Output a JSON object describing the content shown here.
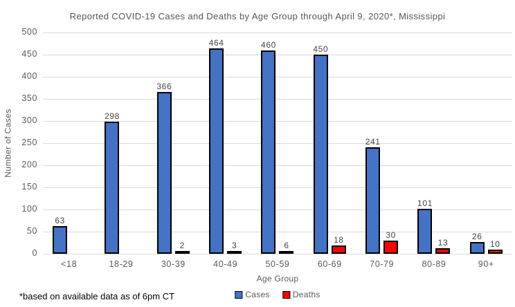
{
  "title": "Reported COVID-19 Cases and Deaths by Age Group through April 9, 2020*, Mississippi",
  "footnote": "*based on available data as of 6pm CT",
  "chart_data": {
    "type": "bar",
    "title": "Reported COVID-19 Cases and Deaths by Age Group through April 9, 2020*, Mississippi",
    "categories": [
      "<18",
      "18-29",
      "30-39",
      "40-49",
      "50-59",
      "60-69",
      "70-79",
      "80-89",
      "90+"
    ],
    "series": [
      {
        "name": "Cases",
        "color": "#4472C4",
        "values": [
          63,
          298,
          366,
          464,
          460,
          450,
          241,
          101,
          26
        ]
      },
      {
        "name": "Deaths",
        "color": "#FF0000",
        "values": [
          0,
          0,
          2,
          3,
          6,
          18,
          30,
          13,
          10
        ]
      }
    ],
    "xlabel": "Age Group",
    "ylabel": "Number of Cases",
    "ylim": [
      0,
      500
    ],
    "ytick_step": 50,
    "grid": true,
    "legend_position": "bottom",
    "bar_border_color": "#000000",
    "gridline_color": "#d9d9d9"
  }
}
